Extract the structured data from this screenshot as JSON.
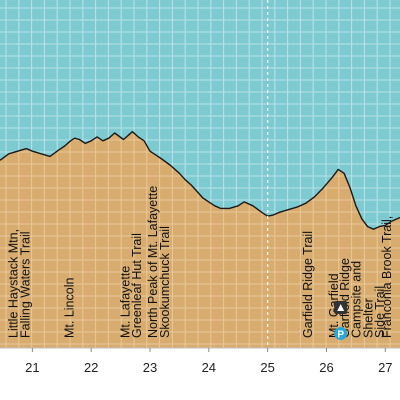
{
  "chart_data": {
    "type": "area",
    "title": "",
    "xlabel": "",
    "ylabel": "",
    "xlim": [
      20.45,
      27.25
    ],
    "x_ticks": [
      21,
      22,
      23,
      24,
      25,
      26,
      27
    ],
    "grid": true,
    "colors": {
      "sky": "#7ecad1",
      "sky_grid": "#b9e3e7",
      "ground": "#d8ab6f",
      "ground_grid": "#e8c99a",
      "profile_line": "#1a1a1a",
      "boundary_line": "#bfbfbf",
      "axis_band": "#ffffff",
      "icon_dark": "#333333",
      "icon_blue": "#2aa7d9"
    },
    "series": [
      {
        "points": [
          [
            20.45,
            0.29
          ],
          [
            20.6,
            0.34
          ],
          [
            20.75,
            0.36
          ],
          [
            20.9,
            0.38
          ],
          [
            21.0,
            0.36
          ],
          [
            21.15,
            0.34
          ],
          [
            21.3,
            0.32
          ],
          [
            21.45,
            0.37
          ],
          [
            21.55,
            0.4
          ],
          [
            21.65,
            0.44
          ],
          [
            21.72,
            0.46
          ],
          [
            21.8,
            0.45
          ],
          [
            21.9,
            0.42
          ],
          [
            22.0,
            0.44
          ],
          [
            22.1,
            0.47
          ],
          [
            22.2,
            0.44
          ],
          [
            22.3,
            0.46
          ],
          [
            22.4,
            0.5
          ],
          [
            22.55,
            0.45
          ],
          [
            22.65,
            0.49
          ],
          [
            22.7,
            0.51
          ],
          [
            22.8,
            0.47
          ],
          [
            22.9,
            0.44
          ],
          [
            23.0,
            0.36
          ],
          [
            23.1,
            0.33
          ],
          [
            23.2,
            0.3
          ],
          [
            23.35,
            0.25
          ],
          [
            23.5,
            0.19
          ],
          [
            23.6,
            0.14
          ],
          [
            23.7,
            0.1
          ],
          [
            23.8,
            0.05
          ],
          [
            23.9,
            0.0
          ],
          [
            24.0,
            -0.03
          ],
          [
            24.1,
            -0.06
          ],
          [
            24.2,
            -0.08
          ],
          [
            24.35,
            -0.08
          ],
          [
            24.5,
            -0.06
          ],
          [
            24.6,
            -0.03
          ],
          [
            24.75,
            -0.06
          ],
          [
            24.9,
            -0.11
          ],
          [
            25.0,
            -0.14
          ],
          [
            25.1,
            -0.13
          ],
          [
            25.2,
            -0.11
          ],
          [
            25.35,
            -0.09
          ],
          [
            25.5,
            -0.07
          ],
          [
            25.65,
            -0.04
          ],
          [
            25.8,
            0.01
          ],
          [
            25.95,
            0.08
          ],
          [
            26.1,
            0.16
          ],
          [
            26.2,
            0.22
          ],
          [
            26.3,
            0.19
          ],
          [
            26.4,
            0.08
          ],
          [
            26.5,
            -0.06
          ],
          [
            26.6,
            -0.16
          ],
          [
            26.7,
            -0.22
          ],
          [
            26.8,
            -0.24
          ],
          [
            26.9,
            -0.22
          ],
          [
            27.0,
            -0.21
          ],
          [
            27.1,
            -0.18
          ],
          [
            27.25,
            -0.15
          ]
        ]
      }
    ],
    "annotations": [
      {
        "text": "Little Haystack Mtn,",
        "x": 20.75
      },
      {
        "text": "Falling Waters Trail",
        "x": 20.95
      },
      {
        "text": "Mt. Lincoln",
        "x": 21.7
      },
      {
        "text": "Mt. Lafayette",
        "x": 22.65
      },
      {
        "text": "Greenleaf Hut Trail",
        "x": 22.85
      },
      {
        "text": "North Peak of Mt. Lafayette",
        "x": 23.12
      },
      {
        "text": "Skookumchuck Trail",
        "x": 23.32
      },
      {
        "text": "Garfield Ridge Trail",
        "x": 25.75
      },
      {
        "text": "Mt. Garfield",
        "x": 26.2
      },
      {
        "text": "Garfield Ridge",
        "x": 26.38
      },
      {
        "text": "Campsite and",
        "x": 26.58
      },
      {
        "text": "Shelter",
        "x": 26.78
      },
      {
        "text": "Side Trail",
        "x": 26.98
      },
      {
        "text": "Franconia Brook Trail,",
        "x": 27.1
      }
    ],
    "icons": [
      "campsite-icon",
      "parking-icon"
    ]
  }
}
